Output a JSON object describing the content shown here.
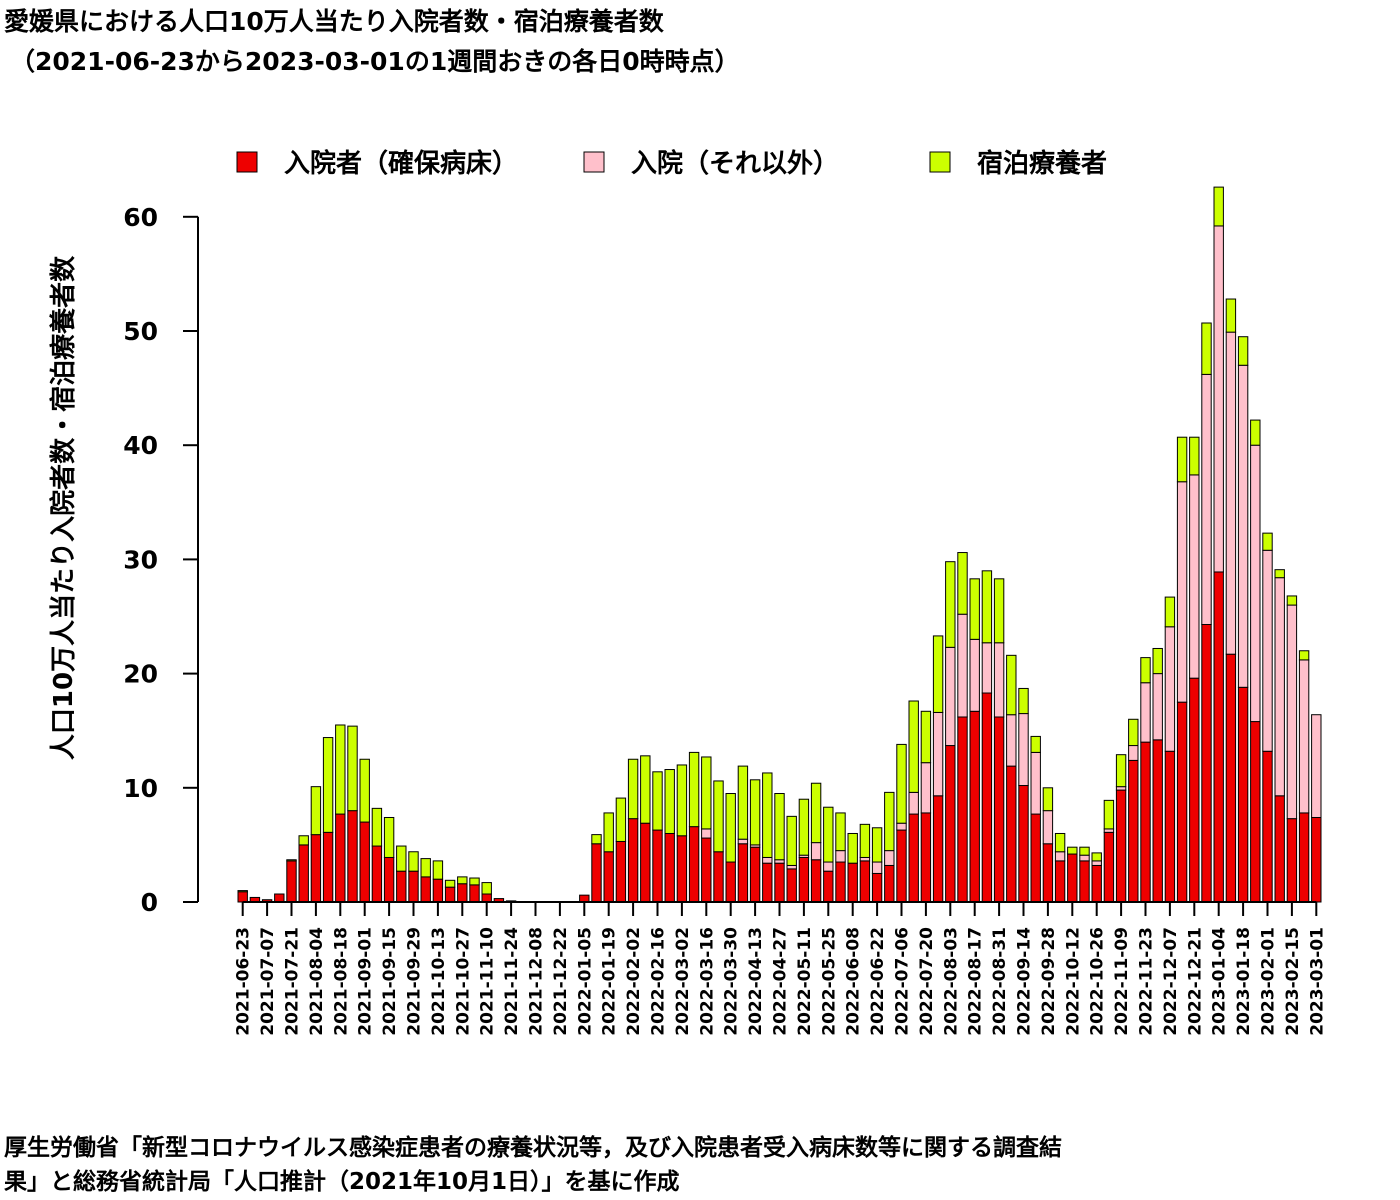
{
  "title": {
    "line1": "愛媛県における人口10万人当たり入院者数・宿泊療養者数",
    "line2": "（2021-06-23から2023-03-01の1週間おきの各日0時時点）"
  },
  "caption": {
    "line1": "厚生労働省「新型コロナウイルス感染症患者の療養状況等，及び入院患者受入病床数等に関する調査結",
    "line2": "果」と総務省統計局「人口推計（2021年10月1日）」を基に作成"
  },
  "chart_data": {
    "type": "bar",
    "stacked": true,
    "ylabel": "人口10万人当たり入院者数・宿泊療養者数",
    "xlabel": "",
    "ylim": [
      0,
      60
    ],
    "yticks": [
      0,
      10,
      20,
      30,
      40,
      50,
      60
    ],
    "legend_position": "top",
    "categories": [
      "2021-06-23",
      "2021-06-30",
      "2021-07-07",
      "2021-07-14",
      "2021-07-21",
      "2021-07-28",
      "2021-08-04",
      "2021-08-11",
      "2021-08-18",
      "2021-08-25",
      "2021-09-01",
      "2021-09-08",
      "2021-09-15",
      "2021-09-22",
      "2021-09-29",
      "2021-10-06",
      "2021-10-13",
      "2021-10-20",
      "2021-10-27",
      "2021-11-03",
      "2021-11-10",
      "2021-11-17",
      "2021-11-24",
      "2021-12-01",
      "2021-12-08",
      "2021-12-15",
      "2021-12-22",
      "2021-12-29",
      "2022-01-05",
      "2022-01-12",
      "2022-01-19",
      "2022-01-26",
      "2022-02-02",
      "2022-02-09",
      "2022-02-16",
      "2022-02-23",
      "2022-03-02",
      "2022-03-09",
      "2022-03-16",
      "2022-03-23",
      "2022-03-30",
      "2022-04-06",
      "2022-04-13",
      "2022-04-20",
      "2022-04-27",
      "2022-05-04",
      "2022-05-11",
      "2022-05-18",
      "2022-05-25",
      "2022-06-01",
      "2022-06-08",
      "2022-06-15",
      "2022-06-22",
      "2022-06-29",
      "2022-07-06",
      "2022-07-13",
      "2022-07-20",
      "2022-07-27",
      "2022-08-03",
      "2022-08-10",
      "2022-08-17",
      "2022-08-24",
      "2022-08-31",
      "2022-09-07",
      "2022-09-14",
      "2022-09-21",
      "2022-09-28",
      "2022-10-05",
      "2022-10-12",
      "2022-10-19",
      "2022-10-26",
      "2022-11-02",
      "2022-11-09",
      "2022-11-16",
      "2022-11-23",
      "2022-11-30",
      "2022-12-07",
      "2022-12-14",
      "2022-12-21",
      "2022-12-28",
      "2023-01-04",
      "2023-01-11",
      "2023-01-18",
      "2023-01-25",
      "2023-02-01",
      "2023-02-08",
      "2023-02-15",
      "2023-02-22",
      "2023-03-01"
    ],
    "tick_labels": [
      "2021-06-23",
      "2021-07-07",
      "2021-07-21",
      "2021-08-04",
      "2021-08-18",
      "2021-09-01",
      "2021-09-15",
      "2021-09-29",
      "2021-10-13",
      "2021-10-27",
      "2021-11-10",
      "2021-11-24",
      "2021-12-08",
      "2021-12-22",
      "2022-01-05",
      "2022-01-19",
      "2022-02-02",
      "2022-02-16",
      "2022-03-02",
      "2022-03-16",
      "2022-03-30",
      "2022-04-13",
      "2022-04-27",
      "2022-05-11",
      "2022-05-25",
      "2022-06-08",
      "2022-06-22",
      "2022-07-06",
      "2022-07-20",
      "2022-08-03",
      "2022-08-17",
      "2022-08-31",
      "2022-09-14",
      "2022-09-28",
      "2022-10-12",
      "2022-10-26",
      "2022-11-09",
      "2022-11-23",
      "2022-12-07",
      "2022-12-21",
      "2023-01-04",
      "2023-01-18",
      "2023-02-01",
      "2023-02-15",
      "2023-03-01"
    ],
    "series": [
      {
        "name": "入院者（確保病床）",
        "color": "#ee0000",
        "values": [
          0.9,
          0.4,
          0.2,
          0.7,
          3.6,
          5.0,
          5.9,
          6.1,
          7.7,
          8.0,
          7.0,
          4.9,
          3.9,
          2.7,
          2.7,
          2.2,
          2.0,
          1.3,
          1.6,
          1.5,
          0.7,
          0.3,
          0.1,
          0,
          0,
          0,
          0,
          0,
          0.6,
          5.1,
          4.4,
          5.3,
          7.3,
          6.9,
          6.3,
          6.0,
          5.8,
          6.6,
          5.6,
          4.4,
          3.5,
          5.1,
          4.8,
          3.4,
          3.4,
          2.9,
          3.9,
          3.7,
          2.7,
          3.5,
          3.4,
          3.6,
          2.5,
          3.2,
          6.3,
          7.7,
          7.8,
          9.3,
          13.7,
          16.2,
          16.7,
          18.3,
          16.2,
          11.9,
          10.2,
          7.7,
          5.1,
          3.6,
          4.2,
          3.6,
          3.2,
          6.1,
          9.8,
          12.4,
          14.0,
          14.2,
          13.2,
          17.5,
          19.6,
          24.3,
          28.9,
          21.7,
          18.8,
          15.8,
          13.2,
          9.3,
          7.3,
          7.8,
          7.4
        ]
      },
      {
        "name": "入院（それ以外）",
        "color": "#ffc0cb",
        "values": [
          0,
          0,
          0,
          0,
          0,
          0,
          0,
          0,
          0,
          0,
          0,
          0,
          0,
          0,
          0,
          0,
          0,
          0,
          0,
          0,
          0,
          0,
          0,
          0,
          0,
          0,
          0,
          0,
          0,
          0,
          0,
          0,
          0,
          0,
          0,
          0,
          0,
          0,
          0.8,
          0,
          0,
          0.4,
          0.2,
          0.5,
          0.3,
          0.3,
          0.2,
          1.5,
          0.8,
          1.0,
          0,
          0.3,
          1.0,
          1.3,
          0.6,
          1.9,
          4.4,
          7.3,
          8.6,
          9.0,
          6.3,
          4.4,
          6.5,
          4.5,
          6.3,
          5.4,
          2.9,
          0.8,
          0,
          0.5,
          0.4,
          0.3,
          0.3,
          1.3,
          5.2,
          5.8,
          10.9,
          19.3,
          17.8,
          21.9,
          30.3,
          28.2,
          28.2,
          24.2,
          17.6,
          19.1,
          18.7,
          13.4,
          9.0
        ]
      },
      {
        "name": "宿泊療養者",
        "color": "#ccff00",
        "values": [
          0.1,
          0,
          0,
          0,
          0.1,
          0.8,
          4.2,
          8.3,
          7.8,
          7.4,
          5.5,
          3.3,
          3.5,
          2.2,
          1.7,
          1.6,
          1.6,
          0.6,
          0.6,
          0.6,
          1.0,
          0,
          0,
          0,
          0,
          0,
          0,
          0,
          0,
          0.8,
          3.4,
          3.8,
          5.2,
          5.9,
          5.1,
          5.6,
          6.2,
          6.5,
          6.3,
          6.2,
          6.0,
          6.4,
          5.7,
          7.4,
          5.8,
          4.3,
          4.9,
          5.2,
          4.8,
          3.3,
          2.6,
          2.9,
          3.0,
          5.1,
          6.9,
          8.0,
          4.5,
          6.7,
          7.5,
          5.4,
          5.3,
          6.3,
          5.6,
          5.2,
          2.2,
          1.4,
          2.0,
          1.6,
          0.6,
          0.7,
          0.7,
          2.5,
          2.8,
          2.3,
          2.2,
          2.2,
          2.6,
          3.9,
          3.3,
          4.5,
          3.4,
          2.9,
          2.5,
          2.2,
          1.5,
          0.7,
          0.8,
          0.8,
          0
        ]
      }
    ]
  }
}
